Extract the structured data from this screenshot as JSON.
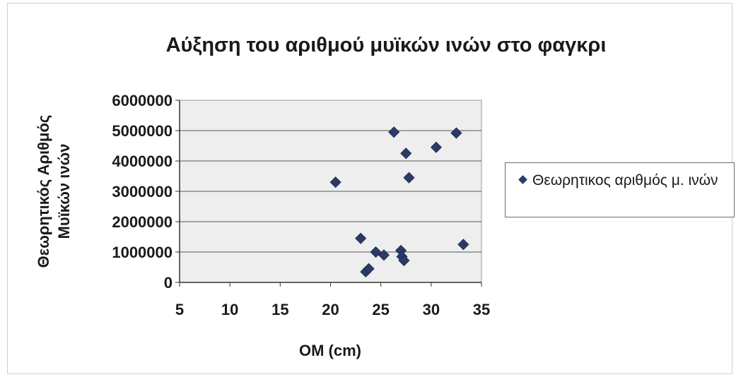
{
  "chart_data": {
    "type": "scatter",
    "title": "Αύξηση του αριθμού μυϊκών ινών στο φαγκρι",
    "xlabel": "ΟΜ (cm)",
    "ylabel_lines": [
      "Θεωρητικός Αριθμός",
      "Μυϊκών ινών"
    ],
    "xlim": [
      5,
      35
    ],
    "ylim": [
      0,
      6000000
    ],
    "x_ticks": [
      5,
      10,
      15,
      20,
      25,
      30,
      35
    ],
    "y_ticks": [
      0,
      1000000,
      2000000,
      3000000,
      4000000,
      5000000,
      6000000
    ],
    "x_tick_labels": [
      "5",
      "10",
      "15",
      "20",
      "25",
      "30",
      "35"
    ],
    "y_tick_labels": [
      "0",
      "1000000",
      "2000000",
      "3000000",
      "4000000",
      "5000000",
      "6000000"
    ],
    "grid": "horizontal",
    "legend_position": "right",
    "plot_background": "#eeeeee",
    "marker_color": "#2b3a67",
    "series": [
      {
        "name": "Θεωρητικος αριθμός μ. ινών",
        "points": [
          {
            "x": 20.5,
            "y": 3300000
          },
          {
            "x": 23.0,
            "y": 1450000
          },
          {
            "x": 23.5,
            "y": 350000
          },
          {
            "x": 23.8,
            "y": 450000
          },
          {
            "x": 24.5,
            "y": 1000000
          },
          {
            "x": 25.3,
            "y": 900000
          },
          {
            "x": 26.3,
            "y": 4950000
          },
          {
            "x": 27.0,
            "y": 1050000
          },
          {
            "x": 27.1,
            "y": 850000
          },
          {
            "x": 27.3,
            "y": 720000
          },
          {
            "x": 27.5,
            "y": 4250000
          },
          {
            "x": 27.8,
            "y": 3450000
          },
          {
            "x": 30.5,
            "y": 4450000
          },
          {
            "x": 32.5,
            "y": 4920000
          },
          {
            "x": 33.2,
            "y": 1250000
          }
        ]
      }
    ]
  }
}
